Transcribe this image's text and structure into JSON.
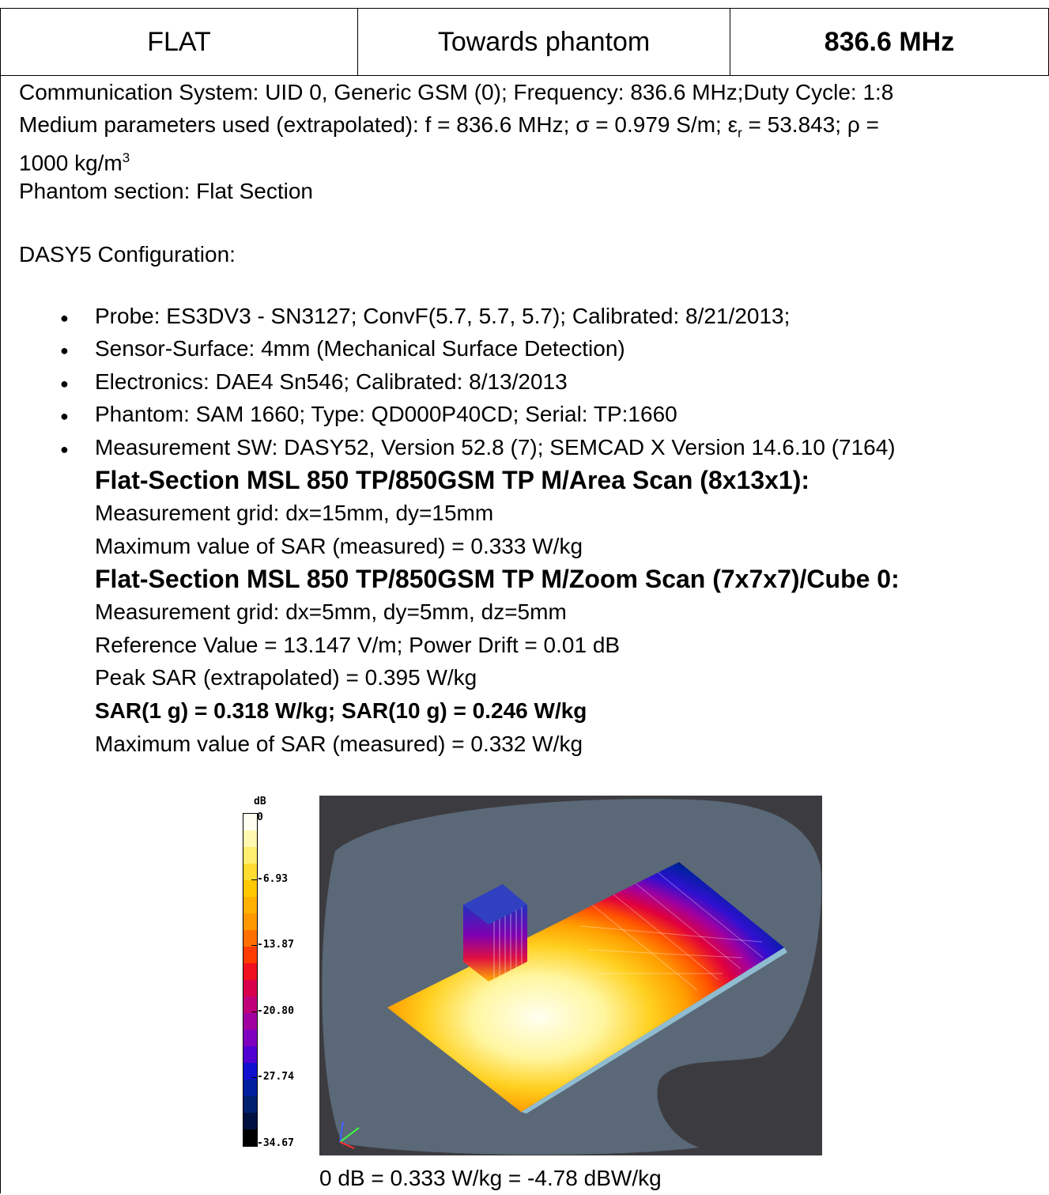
{
  "header": {
    "mode": "FLAT",
    "position": "Towards phantom",
    "frequency": "836.6 MHz"
  },
  "body": {
    "comm_system": "Communication System: UID 0, Generic GSM (0); Frequency: 836.6 MHz;Duty Cycle: 1:8",
    "medium_prefix": "Medium parameters used (extrapolated): f = 836.6 MHz; σ = 0.979 S/m; ε",
    "medium_sub": "r",
    "medium_suffix": " = 53.843; ρ =",
    "density_value": "1000 kg/m",
    "density_sup": "3",
    "phantom_section": "Phantom section: Flat Section",
    "config_title": "DASY5 Configuration:",
    "config_items": [
      "Probe: ES3DV3 - SN3127; ConvF(5.7, 5.7, 5.7); Calibrated: 8/21/2013;",
      "Sensor-Surface: 4mm (Mechanical Surface Detection)",
      "Electronics: DAE4 Sn546; Calibrated: 8/13/2013",
      "Phantom: SAM 1660; Type: QD000P40CD; Serial: TP:1660",
      "Measurement SW: DASY52, Version 52.8 (7); SEMCAD X Version 14.6.10 (7164)"
    ],
    "area_title": "Flat-Section MSL 850 TP/850GSM TP M/Area Scan (8x13x1):",
    "area_grid": "Measurement grid: dx=15mm, dy=15mm",
    "area_max": "Maximum value of SAR (measured) = 0.333 W/kg",
    "zoom_title": "Flat-Section MSL 850 TP/850GSM TP M/Zoom Scan (7x7x7)/Cube 0:",
    "zoom_grid": "Measurement grid: dx=5mm, dy=5mm, dz=5mm",
    "zoom_ref": "Reference Value = 13.147 V/m; Power Drift = 0.01 dB",
    "zoom_peak": "Peak SAR (extrapolated) = 0.395 W/kg",
    "zoom_sar": "SAR(1 g) = 0.318 W/kg; SAR(10 g) = 0.246 W/kg",
    "zoom_max": "Maximum value of SAR (measured) = 0.332 W/kg"
  },
  "colorbar": {
    "unit": "dB",
    "ticks": [
      "0",
      "-6.93",
      "-13.87",
      "-20.80",
      "-27.74",
      "-34.67"
    ],
    "colors": [
      "#fffff0",
      "#fff8b0",
      "#ffee70",
      "#ffdc30",
      "#ffc800",
      "#ffb000",
      "#ff9800",
      "#ff7000",
      "#ff3c00",
      "#f01020",
      "#d8004c",
      "#c00078",
      "#a000a0",
      "#8000c0",
      "#5000d0",
      "#1010d0",
      "#0020a0",
      "#002070",
      "#001040",
      "#000000"
    ]
  },
  "caption": "0 dB = 0.333 W/kg = -4.78 dBW/kg"
}
